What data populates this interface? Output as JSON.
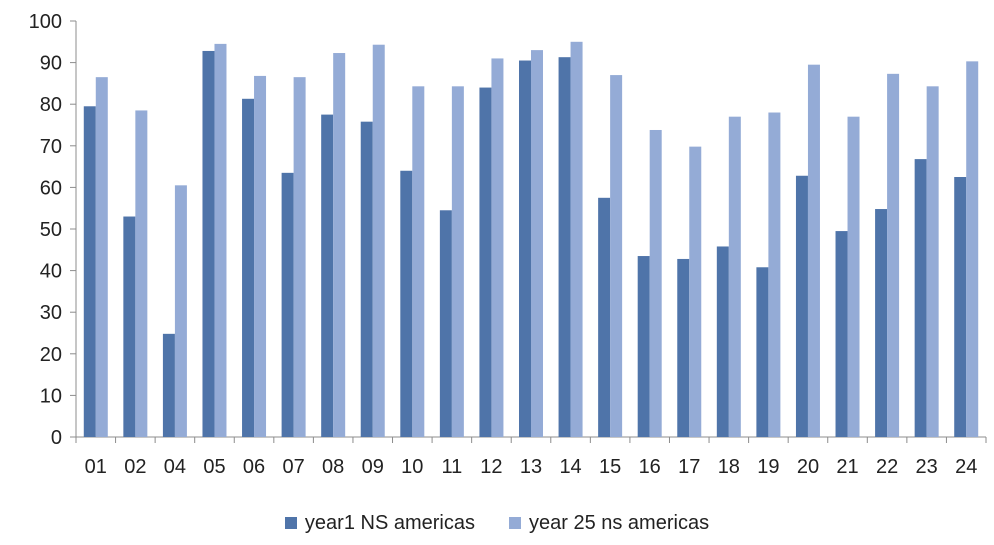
{
  "chart_data": {
    "type": "bar",
    "categories": [
      "01",
      "02",
      "04",
      "05",
      "06",
      "07",
      "08",
      "09",
      "10",
      "11",
      "12",
      "13",
      "14",
      "15",
      "16",
      "17",
      "18",
      "19",
      "20",
      "21",
      "22",
      "23",
      "24"
    ],
    "series": [
      {
        "name": "year1 NS americas",
        "color": "#4f74a9",
        "values": [
          79.5,
          53,
          24.8,
          92.8,
          81.3,
          63.5,
          77.5,
          75.8,
          64,
          54.5,
          84,
          90.5,
          91.3,
          57.5,
          43.5,
          42.8,
          45.8,
          40.8,
          62.8,
          49.5,
          54.8,
          66.8,
          62.5
        ]
      },
      {
        "name": "year 25 ns americas",
        "color": "#94abd6",
        "values": [
          86.5,
          78.5,
          60.5,
          94.5,
          86.8,
          86.5,
          92.3,
          94.3,
          84.3,
          84.3,
          91,
          93,
          95,
          87,
          73.8,
          69.8,
          77,
          78,
          89.5,
          77,
          87.3,
          84.3,
          90.3
        ]
      }
    ],
    "ylim": [
      0,
      100
    ],
    "yticks": [
      0,
      10,
      20,
      30,
      40,
      50,
      60,
      70,
      80,
      90,
      100
    ],
    "grid": false,
    "legend_position": "bottom",
    "title": "",
    "xlabel": "",
    "ylabel": ""
  }
}
